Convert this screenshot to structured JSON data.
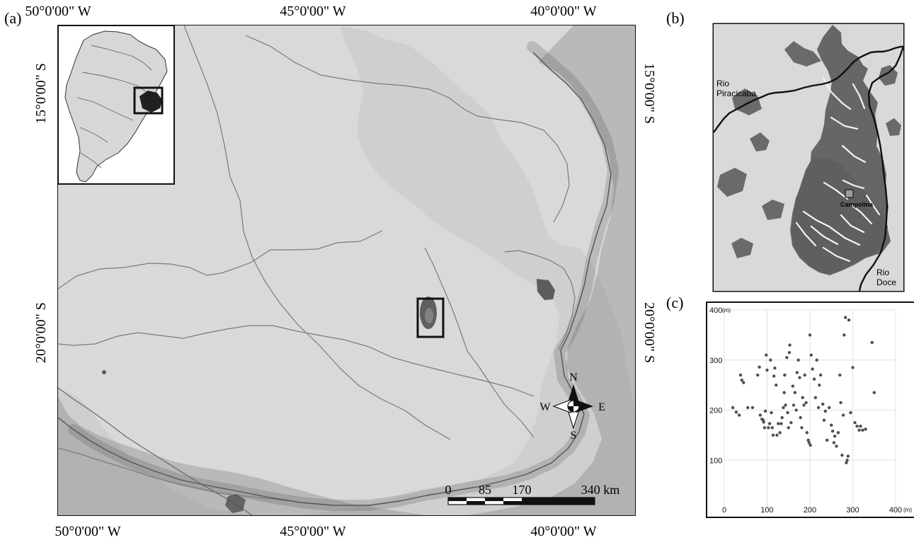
{
  "panels": {
    "a": "(a)",
    "b": "(b)",
    "c": "(c)"
  },
  "main_map": {
    "top_labels": [
      "50°0'00\" W",
      "45°0'00\" W",
      "40°0'00\" W"
    ],
    "bottom_labels": [
      "50°0'00\" W",
      "45°0'00\" W",
      "40°0'00\" W"
    ],
    "left_labels": [
      "15°0'00\" S",
      "20°0'00\" S"
    ],
    "right_labels": [
      "15°0'00\" S",
      "20°0'00\" S"
    ],
    "compass": {
      "n": "N",
      "s": "S",
      "e": "E",
      "w": "W"
    },
    "scale_bar": {
      "labels": [
        "0",
        "85",
        "170",
        "340 km"
      ]
    }
  },
  "inset_b": {
    "river_left": [
      "Rio",
      "Piracicaba"
    ],
    "river_right": [
      "Rio",
      "Doce"
    ],
    "site": "Campolina"
  },
  "scatter_c": {
    "unit_y": "(m)",
    "unit_x": "(m)"
  },
  "colors": {
    "land": "#d9d9d9",
    "forest": "#5e5e5e",
    "border": "#111111",
    "gridline": "#e3e3e3",
    "point": "#4f4f4f"
  },
  "chart_data": {
    "type": "scatter",
    "title": "",
    "xlabel": "",
    "ylabel": "",
    "xlim": [
      0,
      400
    ],
    "ylim": [
      0,
      400
    ],
    "xticks": [
      0,
      100,
      200,
      300,
      400
    ],
    "yticks": [
      100,
      200,
      300,
      400
    ],
    "grid": true,
    "points": [
      [
        20,
        205
      ],
      [
        28,
        196
      ],
      [
        35,
        190
      ],
      [
        38,
        270
      ],
      [
        41,
        260
      ],
      [
        45,
        255
      ],
      [
        55,
        205
      ],
      [
        66,
        205
      ],
      [
        78,
        270
      ],
      [
        82,
        286
      ],
      [
        84,
        190
      ],
      [
        88,
        182
      ],
      [
        91,
        180
      ],
      [
        92,
        176
      ],
      [
        94,
        165
      ],
      [
        96,
        198
      ],
      [
        98,
        310
      ],
      [
        100,
        280
      ],
      [
        103,
        165
      ],
      [
        106,
        173
      ],
      [
        108,
        300
      ],
      [
        110,
        195
      ],
      [
        112,
        165
      ],
      [
        114,
        150
      ],
      [
        116,
        268
      ],
      [
        118,
        284
      ],
      [
        121,
        250
      ],
      [
        123,
        150
      ],
      [
        126,
        173
      ],
      [
        130,
        155
      ],
      [
        133,
        173
      ],
      [
        135,
        185
      ],
      [
        138,
        205
      ],
      [
        140,
        235
      ],
      [
        141,
        270
      ],
      [
        143,
        210
      ],
      [
        146,
        305
      ],
      [
        148,
        195
      ],
      [
        150,
        165
      ],
      [
        152,
        315
      ],
      [
        153,
        330
      ],
      [
        156,
        175
      ],
      [
        160,
        248
      ],
      [
        162,
        210
      ],
      [
        165,
        235
      ],
      [
        168,
        200
      ],
      [
        170,
        275
      ],
      [
        173,
        300
      ],
      [
        176,
        265
      ],
      [
        178,
        185
      ],
      [
        181,
        165
      ],
      [
        183,
        225
      ],
      [
        186,
        210
      ],
      [
        188,
        270
      ],
      [
        191,
        215
      ],
      [
        193,
        155
      ],
      [
        196,
        140
      ],
      [
        198,
        135
      ],
      [
        200,
        350
      ],
      [
        201,
        130
      ],
      [
        203,
        310
      ],
      [
        206,
        282
      ],
      [
        210,
        262
      ],
      [
        213,
        225
      ],
      [
        216,
        300
      ],
      [
        220,
        205
      ],
      [
        222,
        250
      ],
      [
        225,
        270
      ],
      [
        230,
        212
      ],
      [
        233,
        180
      ],
      [
        236,
        198
      ],
      [
        240,
        140
      ],
      [
        245,
        205
      ],
      [
        250,
        170
      ],
      [
        253,
        158
      ],
      [
        256,
        135
      ],
      [
        258,
        148
      ],
      [
        262,
        128
      ],
      [
        266,
        155
      ],
      [
        270,
        270
      ],
      [
        272,
        215
      ],
      [
        275,
        110
      ],
      [
        278,
        190
      ],
      [
        280,
        350
      ],
      [
        283,
        385
      ],
      [
        285,
        95
      ],
      [
        287,
        100
      ],
      [
        289,
        108
      ],
      [
        291,
        380
      ],
      [
        295,
        195
      ],
      [
        300,
        285
      ],
      [
        305,
        175
      ],
      [
        310,
        168
      ],
      [
        315,
        160
      ],
      [
        318,
        168
      ],
      [
        323,
        160
      ],
      [
        330,
        162
      ],
      [
        345,
        335
      ],
      [
        350,
        235
      ]
    ]
  }
}
